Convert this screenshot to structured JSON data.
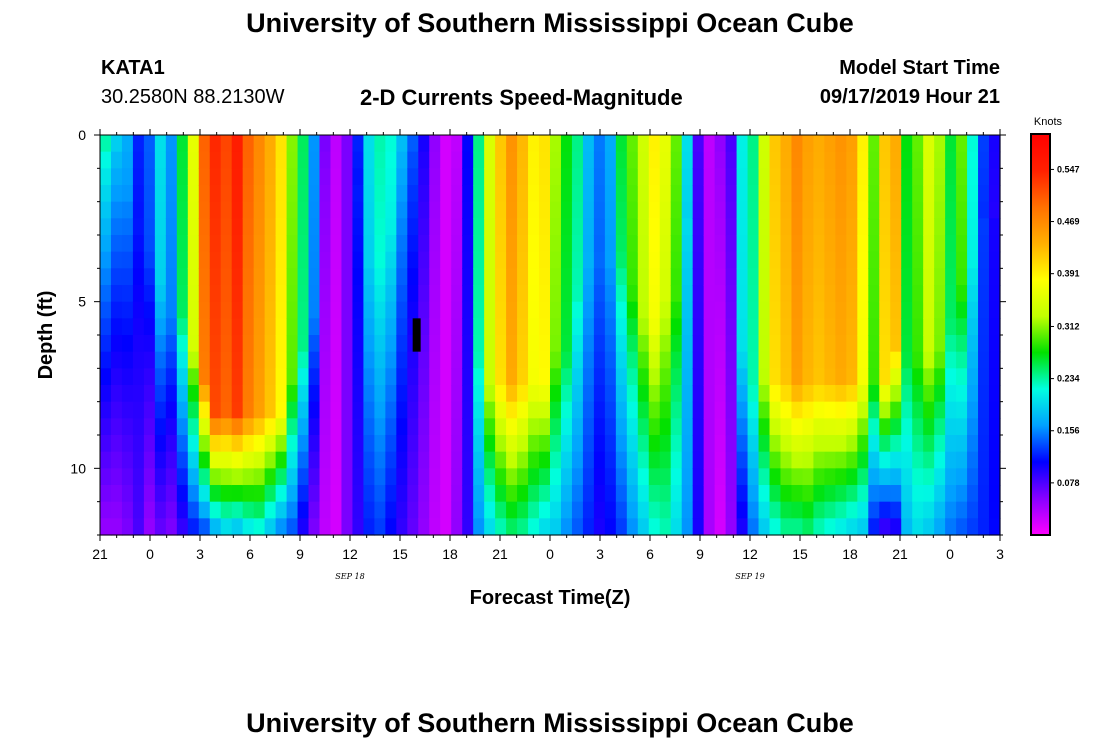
{
  "page": {
    "title_top": "University of Southern Mississippi Ocean Cube",
    "title_bottom": "University of Southern Mississippi Ocean Cube",
    "station_name": "KATA1",
    "station_coords": "30.2580N 88.2130W",
    "plot_title": "2-D Currents Speed-Magnitude",
    "model_start_label": "Model Start Time",
    "model_start_value": "09/17/2019 Hour 21"
  },
  "chart_data": {
    "type": "heatmap",
    "title": "2-D Currents Speed-Magnitude",
    "xlabel": "Forecast Time(Z)",
    "ylabel": "Depth (ft)",
    "colorbar_label": "Knots",
    "x_range_hours": [
      0,
      54
    ],
    "y_range_ft": [
      0,
      12
    ],
    "x_ticks": [
      {
        "hour": 0,
        "label": "21"
      },
      {
        "hour": 3,
        "label": "0"
      },
      {
        "hour": 6,
        "label": "3"
      },
      {
        "hour": 9,
        "label": "6"
      },
      {
        "hour": 12,
        "label": "9"
      },
      {
        "hour": 15,
        "label": "12"
      },
      {
        "hour": 18,
        "label": "15"
      },
      {
        "hour": 21,
        "label": "18"
      },
      {
        "hour": 24,
        "label": "21"
      },
      {
        "hour": 27,
        "label": "0"
      },
      {
        "hour": 30,
        "label": "3"
      },
      {
        "hour": 33,
        "label": "6"
      },
      {
        "hour": 36,
        "label": "9"
      },
      {
        "hour": 39,
        "label": "12"
      },
      {
        "hour": 42,
        "label": "15"
      },
      {
        "hour": 45,
        "label": "18"
      },
      {
        "hour": 48,
        "label": "21"
      },
      {
        "hour": 51,
        "label": "0"
      },
      {
        "hour": 54,
        "label": "3"
      }
    ],
    "date_labels": [
      {
        "hour": 15,
        "label": "SEP 18"
      },
      {
        "hour": 39,
        "label": "SEP 19"
      }
    ],
    "y_ticks": [
      {
        "depth": 0,
        "label": "0"
      },
      {
        "depth": 5,
        "label": "5"
      },
      {
        "depth": 10,
        "label": "10"
      }
    ],
    "colorbar_ticks": [
      "0.078",
      "0.156",
      "0.234",
      "0.312",
      "0.391",
      "0.469",
      "0.547"
    ],
    "colorbar_range": [
      0,
      0.6
    ],
    "colorbar_colors": [
      "#ff00ff",
      "#8800ff",
      "#0000ff",
      "#00a0ff",
      "#00ffe0",
      "#00e000",
      "#c0ff00",
      "#ffff00",
      "#ffb000",
      "#ff7000",
      "#ff2000",
      "#ff0000"
    ],
    "depth_profile_rows": [
      0,
      0.5,
      1,
      1.5,
      2,
      2.5,
      3,
      3.5,
      4,
      4.5,
      5,
      5.5,
      6,
      6.5,
      7,
      7.5,
      8,
      8.5,
      9,
      9.5,
      10,
      10.5,
      11,
      11.5
    ],
    "surface_speed_knots": [
      0.23,
      0.19,
      0.17,
      0.12,
      0.14,
      0.2,
      0.16,
      0.26,
      0.36,
      0.5,
      0.54,
      0.52,
      0.55,
      0.5,
      0.47,
      0.44,
      0.4,
      0.31,
      0.25,
      0.16,
      0.06,
      0.03,
      0.06,
      0.12,
      0.2,
      0.23,
      0.22,
      0.18,
      0.14,
      0.1,
      0.05,
      0.02,
      0.03,
      0.11,
      0.24,
      0.35,
      0.42,
      0.46,
      0.43,
      0.39,
      0.4,
      0.32,
      0.27,
      0.24,
      0.18,
      0.15,
      0.17,
      0.26,
      0.3,
      0.34,
      0.39,
      0.36,
      0.3,
      0.2,
      0.08,
      0.03,
      0.05,
      0.08,
      0.21,
      0.24,
      0.34,
      0.42,
      0.44,
      0.47,
      0.45,
      0.44,
      0.45,
      0.46,
      0.45,
      0.39,
      0.3,
      0.42,
      0.44,
      0.27,
      0.3,
      0.35,
      0.32,
      0.26,
      0.3,
      0.22,
      0.13,
      0.1
    ],
    "shallow_band_depth_ft": [
      0,
      0,
      1,
      2,
      3,
      4,
      5,
      5,
      6,
      7,
      8,
      8,
      8,
      8,
      8,
      8,
      8,
      7,
      6,
      5,
      0,
      0,
      0,
      1,
      3,
      3,
      2,
      0,
      0,
      0,
      0,
      0,
      0,
      0,
      6,
      7,
      7,
      7,
      7,
      7,
      7,
      6,
      6,
      4,
      3,
      3,
      3,
      3,
      4,
      5,
      5,
      4,
      4,
      2,
      0,
      0,
      0,
      0,
      6,
      7,
      7,
      7,
      7,
      7,
      7,
      7,
      7,
      7,
      7,
      7,
      7,
      7,
      6,
      6,
      6,
      6,
      6,
      5,
      4,
      3,
      2,
      2
    ],
    "bottom_speed_knots": [
      0.05,
      0.05,
      0.06,
      0.08,
      0.05,
      0.07,
      0.06,
      0.09,
      0.12,
      0.14,
      0.18,
      0.2,
      0.19,
      0.21,
      0.22,
      0.19,
      0.16,
      0.14,
      0.1,
      0.06,
      0.03,
      0.02,
      0.06,
      0.09,
      0.12,
      0.13,
      0.11,
      0.09,
      0.07,
      0.05,
      0.03,
      0.02,
      0.05,
      0.09,
      0.16,
      0.2,
      0.23,
      0.25,
      0.24,
      0.22,
      0.2,
      0.19,
      0.16,
      0.14,
      0.12,
      0.1,
      0.11,
      0.13,
      0.16,
      0.19,
      0.22,
      0.23,
      0.2,
      0.16,
      0.1,
      0.04,
      0.02,
      0.05,
      0.1,
      0.15,
      0.19,
      0.22,
      0.24,
      0.24,
      0.25,
      0.23,
      0.22,
      0.21,
      0.2,
      0.19,
      0.12,
      0.09,
      0.1,
      0.18,
      0.2,
      0.19,
      0.17,
      0.15,
      0.14,
      0.13,
      0.12,
      0.11
    ],
    "marker": {
      "hour": 19,
      "depth_from": 5.5,
      "depth_to": 6.5,
      "color": "#000000"
    }
  }
}
